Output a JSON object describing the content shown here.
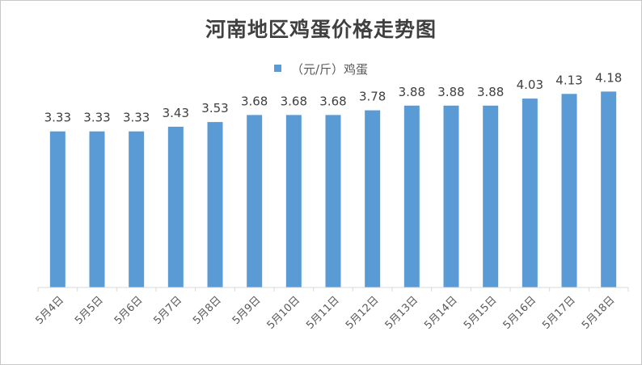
{
  "chart_data": {
    "type": "bar",
    "title": "河南地区鸡蛋价格走势图",
    "categories": [
      "5月4日",
      "5月5日",
      "5月6日",
      "5月7日",
      "5月8日",
      "5月9日",
      "5月10日",
      "5月11日",
      "5月12日",
      "5月13日",
      "5月14日",
      "5月15日",
      "5月16日",
      "5月17日",
      "5月18日"
    ],
    "series": [
      {
        "name": "（元/斤）鸡蛋",
        "values": [
          3.33,
          3.33,
          3.33,
          3.43,
          3.53,
          3.68,
          3.68,
          3.68,
          3.78,
          3.88,
          3.88,
          3.88,
          4.03,
          4.13,
          4.18
        ],
        "color": "#5b9bd5"
      }
    ],
    "value_labels": [
      "3.33",
      "3.33",
      "3.33",
      "3.43",
      "3.53",
      "3.68",
      "3.68",
      "3.68",
      "3.78",
      "3.88",
      "3.88",
      "3.88",
      "4.03",
      "4.13",
      "4.18"
    ],
    "ylim": [
      0,
      4.6
    ],
    "y_axis_visible": false,
    "grid": false,
    "legend": "top-center",
    "xtick_rotation": -45
  }
}
